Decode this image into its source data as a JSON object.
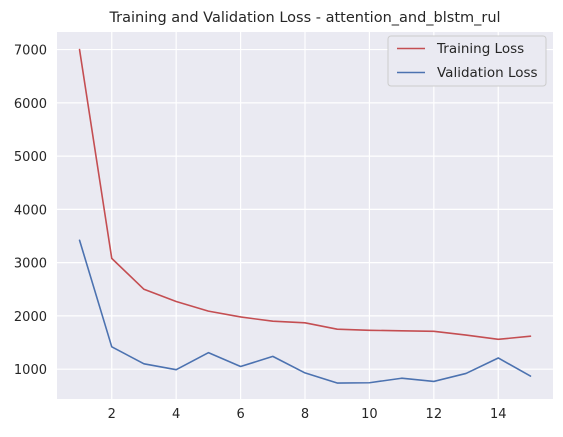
{
  "chart_data": {
    "type": "line",
    "title": "Training and Validation Loss - attention_and_blstm_rul",
    "xlabel": "",
    "ylabel": "",
    "x": [
      1,
      2,
      3,
      4,
      5,
      6,
      7,
      8,
      9,
      10,
      11,
      12,
      13,
      14,
      15
    ],
    "xlim": [
      0.3,
      15.7
    ],
    "ylim": [
      440,
      7330
    ],
    "x_ticks": [
      2,
      4,
      6,
      8,
      10,
      12,
      14
    ],
    "y_ticks": [
      1000,
      2000,
      3000,
      4000,
      5000,
      6000,
      7000
    ],
    "grid": true,
    "legend_position": "top-right",
    "series": [
      {
        "name": "Training Loss",
        "color": "#c44e52",
        "values": [
          7000,
          3080,
          2500,
          2270,
          2090,
          1980,
          1900,
          1870,
          1750,
          1730,
          1720,
          1710,
          1640,
          1560,
          1620
        ]
      },
      {
        "name": "Validation Loss",
        "color": "#4c72b0",
        "values": [
          3420,
          1420,
          1100,
          990,
          1310,
          1050,
          1240,
          930,
          740,
          745,
          830,
          770,
          920,
          1210,
          870
        ]
      }
    ]
  }
}
